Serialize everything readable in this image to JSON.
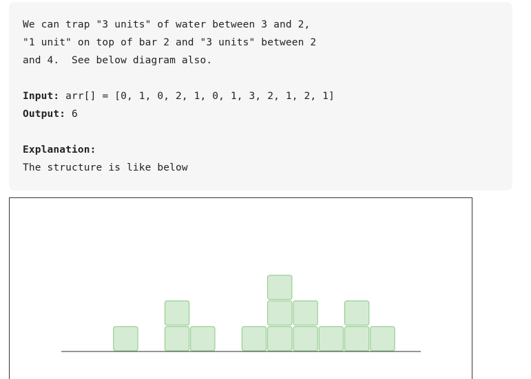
{
  "code_block": {
    "line1": "We can trap \"3 units\" of water between 3 and 2,",
    "line2": "\"1 unit\" on top of bar 2 and \"3 units\" between 2",
    "line3": "and 4.  See below diagram also.",
    "input_label": "Input:",
    "input_value": " arr[] = [0, 1, 0, 2, 1, 0, 1, 3, 2, 1, 2, 1]",
    "output_label": "Output:",
    "output_value": " 6",
    "explanation_label": "Explanation:",
    "explanation_text": "The structure is like below"
  },
  "diagram": {
    "heights": [
      0,
      1,
      0,
      2,
      1,
      0,
      1,
      3,
      2,
      1,
      2,
      1
    ],
    "block_fill": "#d5ebd3",
    "block_stroke": "#88c783",
    "baseline_color": "#555555"
  }
}
